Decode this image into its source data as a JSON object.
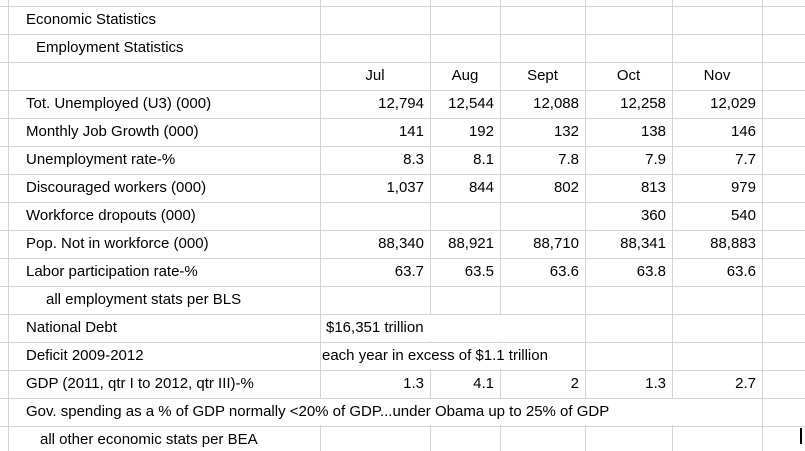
{
  "sheet": {
    "title": "Economic Statistics",
    "subtitle": "Employment Statistics",
    "months": [
      "Jul",
      "Aug",
      "Sept",
      "Oct",
      "Nov"
    ],
    "rows": [
      {
        "label": "Tot. Unemployed (U3) (000)",
        "values": [
          "12,794",
          "12,544",
          "12,088",
          "12,258",
          "12,029"
        ]
      },
      {
        "label": "Monthly Job Growth (000)",
        "values": [
          "141",
          "192",
          "132",
          "138",
          "146"
        ]
      },
      {
        "label": "Unemployment rate-%",
        "values": [
          "8.3",
          "8.1",
          "7.8",
          "7.9",
          "7.7"
        ]
      },
      {
        "label": "Discouraged workers (000)",
        "values": [
          "1,037",
          "844",
          "802",
          "813",
          "979"
        ]
      },
      {
        "label": "Workforce dropouts (000)",
        "values": [
          "",
          "",
          "",
          "360",
          "540"
        ]
      },
      {
        "label": "Pop. Not in workforce (000)",
        "values": [
          "88,340",
          "88,921",
          "88,710",
          "88,341",
          "88,883"
        ]
      },
      {
        "label": "Labor participation rate-%",
        "values": [
          "63.7",
          "63.5",
          "63.6",
          "63.8",
          "63.6"
        ]
      }
    ],
    "bls_note": "all employment stats per BLS",
    "national_debt": {
      "label": "National Debt",
      "value": "$16,351 trillion"
    },
    "deficit": {
      "label": "Deficit 2009-2012",
      "value": "each year in excess of $1.1 trillion"
    },
    "gdp": {
      "label": "GDP (2011, qtr I to 2012, qtr III)-%",
      "values": [
        "1.3",
        "4.1",
        "2",
        "1.3",
        "2.7"
      ]
    },
    "gov_spending_note": "Gov. spending as a % of GDP normally <20% of GDP...under Obama up to 25% of GDP",
    "bea_note": "all other economic stats per BEA"
  }
}
